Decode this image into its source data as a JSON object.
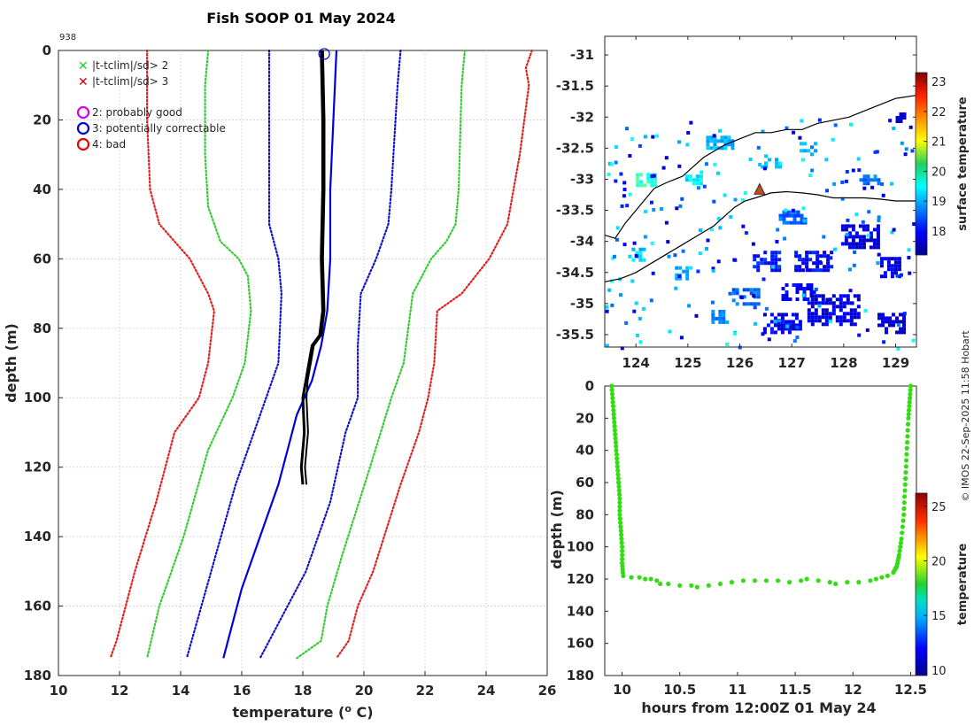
{
  "colors": {
    "clim2": "#33cc33",
    "clim3": "#e02020",
    "probe": "#0000dd",
    "track": "#33dd11",
    "profile": "#000000"
  },
  "credit": "© IMOS 22-Sep-2025 11:58 Hobart",
  "chart_data": [
    {
      "id": "profile",
      "type": "line",
      "title": "Fish SOOP 01 May 2024",
      "station": "938",
      "xlabel": "temperature (",
      "xlabel_sup": "o",
      "xlabel_end": " C)",
      "ylabel": "depth (m)",
      "xlim": [
        10,
        26
      ],
      "ylim": [
        180,
        0
      ],
      "xticks": [
        "10",
        "12",
        "14",
        "16",
        "18",
        "20",
        "22",
        "24",
        "26"
      ],
      "yticks": [
        "0",
        "20",
        "40",
        "60",
        "80",
        "100",
        "120",
        "140",
        "160",
        "180"
      ],
      "legend": [
        {
          "marker": "x",
          "color": "#22cc22",
          "label": "|t-tclim|/sd> 2"
        },
        {
          "marker": "x",
          "color": "#dd0000",
          "label": "|t-tclim|/sd> 3"
        },
        {
          "marker": "o",
          "color": "#dd00dd",
          "label": "2: probably good"
        },
        {
          "marker": "o",
          "color": "#0000dd",
          "label": "3: potentially correctable"
        },
        {
          "marker": "o",
          "color": "#ee0000",
          "label": "4: bad"
        }
      ],
      "series": [
        {
          "name": "clim minus 3sd",
          "style": "dotted",
          "color": "#e02020",
          "points": [
            [
              12.9,
              0
            ],
            [
              12.9,
              20
            ],
            [
              13,
              40
            ],
            [
              13.3,
              50
            ],
            [
              14.3,
              60
            ],
            [
              14.9,
              70
            ],
            [
              15.1,
              75
            ],
            [
              14.9,
              90
            ],
            [
              14.6,
              100
            ],
            [
              13.8,
              110
            ],
            [
              13.2,
              130
            ],
            [
              12.5,
              150
            ],
            [
              11.9,
              170
            ],
            [
              11.7,
              175
            ]
          ]
        },
        {
          "name": "clim minus 2sd",
          "style": "dotted",
          "color": "#33cc33",
          "points": [
            [
              14.9,
              0
            ],
            [
              14.8,
              10
            ],
            [
              14.8,
              30
            ],
            [
              14.9,
              45
            ],
            [
              15.3,
              55
            ],
            [
              15.9,
              60
            ],
            [
              16.2,
              65
            ],
            [
              16.3,
              75
            ],
            [
              16.1,
              90
            ],
            [
              15.7,
              100
            ],
            [
              14.9,
              115
            ],
            [
              14.1,
              140
            ],
            [
              13.3,
              160
            ],
            [
              12.9,
              175
            ]
          ]
        },
        {
          "name": "clim minus 1sd",
          "style": "dotted",
          "color": "#1010cc",
          "points": [
            [
              16.9,
              0
            ],
            [
              16.9,
              20
            ],
            [
              16.9,
              50
            ],
            [
              17.2,
              60
            ],
            [
              17.3,
              70
            ],
            [
              17.2,
              90
            ],
            [
              16.6,
              105
            ],
            [
              15.8,
              125
            ],
            [
              15,
              150
            ],
            [
              14.2,
              175
            ]
          ]
        },
        {
          "name": "clim plus 1sd",
          "style": "dotted",
          "color": "#1010cc",
          "points": [
            [
              21.2,
              0
            ],
            [
              21.1,
              10
            ],
            [
              20.9,
              40
            ],
            [
              20.8,
              50
            ],
            [
              20.4,
              60
            ],
            [
              19.9,
              70
            ],
            [
              19.8,
              85
            ],
            [
              19.8,
              100
            ],
            [
              19.4,
              110
            ],
            [
              18.9,
              130
            ],
            [
              18.1,
              150
            ],
            [
              16.6,
              175
            ]
          ]
        },
        {
          "name": "clim plus 2sd",
          "style": "dotted",
          "color": "#33cc33",
          "points": [
            [
              23.3,
              0
            ],
            [
              23.2,
              10
            ],
            [
              23.1,
              40
            ],
            [
              23,
              50
            ],
            [
              22.7,
              55
            ],
            [
              22.2,
              60
            ],
            [
              21.6,
              70
            ],
            [
              21.3,
              90
            ],
            [
              20.9,
              100
            ],
            [
              20.2,
              120
            ],
            [
              19.3,
              145
            ],
            [
              18.8,
              160
            ],
            [
              18.6,
              170
            ],
            [
              17.8,
              175
            ]
          ]
        },
        {
          "name": "clim plus 3sd",
          "style": "dotted",
          "color": "#e02020",
          "points": [
            [
              25.5,
              0
            ],
            [
              25.3,
              5
            ],
            [
              25.4,
              10
            ],
            [
              25.1,
              30
            ],
            [
              24.9,
              40
            ],
            [
              24.7,
              50
            ],
            [
              24.1,
              60
            ],
            [
              23.2,
              70
            ],
            [
              22.4,
              75
            ],
            [
              22.3,
              90
            ],
            [
              22.1,
              100
            ],
            [
              21.8,
              110
            ],
            [
              21.2,
              125
            ],
            [
              20.3,
              150
            ],
            [
              19.8,
              160
            ],
            [
              19.5,
              170
            ],
            [
              19.1,
              175
            ]
          ]
        },
        {
          "name": "probe temperature",
          "style": "solid",
          "color": "#0000dd",
          "points": [
            [
              19.1,
              0
            ],
            [
              19.0,
              20
            ],
            [
              18.9,
              40
            ],
            [
              18.9,
              60
            ],
            [
              18.8,
              75
            ],
            [
              18.6,
              85
            ],
            [
              18.3,
              95
            ],
            [
              17.8,
              105
            ],
            [
              17.5,
              115
            ],
            [
              17.2,
              125
            ],
            [
              16.8,
              135
            ],
            [
              16.4,
              145
            ],
            [
              16,
              155
            ],
            [
              15.7,
              165
            ],
            [
              15.4,
              175
            ]
          ]
        },
        {
          "name": "observed temperature",
          "style": "solid",
          "color": "#000000",
          "points": [
            [
              18.6,
              0
            ],
            [
              18.65,
              20
            ],
            [
              18.65,
              40
            ],
            [
              18.6,
              60
            ],
            [
              18.65,
              75
            ],
            [
              18.55,
              82
            ],
            [
              18.3,
              85
            ],
            [
              18.2,
              90
            ],
            [
              18.1,
              95
            ],
            [
              18.0,
              100
            ],
            [
              18.05,
              110
            ],
            [
              18.0,
              115
            ],
            [
              17.95,
              120
            ],
            [
              18.0,
              125
            ]
          ]
        }
      ],
      "flag_marker": {
        "x": 18.7,
        "y": 1,
        "color": "#0000dd"
      }
    },
    {
      "id": "map",
      "type": "heatmap",
      "xlim": [
        123.4,
        129.4
      ],
      "ylim": [
        -35.7,
        -30.7
      ],
      "xticks": [
        "124",
        "125",
        "126",
        "127",
        "128",
        "129"
      ],
      "yticks": [
        "-31",
        "-31.5",
        "-32",
        "-32.5",
        "-33",
        "-33.5",
        "-34",
        "-34.5",
        "-35",
        "-35.5"
      ],
      "colorbar_label": "surface temperature",
      "colorbar_ticks": [
        "23",
        "22",
        "21",
        "20",
        "19",
        "18"
      ],
      "colorbar_range": [
        17.2,
        23.3
      ],
      "station_marker": {
        "lon": 126.38,
        "lat": -33.17
      },
      "coast_north": [
        [
          123.4,
          -33.9
        ],
        [
          123.6,
          -33.95
        ],
        [
          123.8,
          -33.7
        ],
        [
          124.0,
          -33.5
        ],
        [
          124.2,
          -33.3
        ],
        [
          124.35,
          -33.15
        ],
        [
          124.6,
          -33.05
        ],
        [
          124.9,
          -32.95
        ],
        [
          125.1,
          -32.8
        ],
        [
          125.3,
          -32.65
        ],
        [
          125.5,
          -32.55
        ],
        [
          125.7,
          -32.45
        ],
        [
          126.0,
          -32.35
        ],
        [
          126.3,
          -32.25
        ],
        [
          126.6,
          -32.25
        ],
        [
          126.9,
          -32.2
        ],
        [
          127.2,
          -32.2
        ],
        [
          127.5,
          -32.1
        ],
        [
          127.8,
          -32.05
        ],
        [
          128.1,
          -32.0
        ],
        [
          128.4,
          -31.9
        ],
        [
          128.7,
          -31.8
        ],
        [
          129.0,
          -31.7
        ],
        [
          129.4,
          -31.65
        ]
      ],
      "coast_south": [
        [
          123.4,
          -34.65
        ],
        [
          123.7,
          -34.6
        ],
        [
          124.0,
          -34.5
        ],
        [
          124.3,
          -34.35
        ],
        [
          124.6,
          -34.2
        ],
        [
          124.9,
          -34.05
        ],
        [
          125.2,
          -33.9
        ],
        [
          125.5,
          -33.75
        ],
        [
          125.7,
          -33.6
        ],
        [
          125.9,
          -33.45
        ],
        [
          126.1,
          -33.35
        ],
        [
          126.3,
          -33.3
        ],
        [
          126.6,
          -33.22
        ],
        [
          126.9,
          -33.2
        ],
        [
          127.2,
          -33.22
        ],
        [
          127.5,
          -33.25
        ],
        [
          127.8,
          -33.3
        ],
        [
          128.1,
          -33.3
        ],
        [
          128.4,
          -33.3
        ],
        [
          128.7,
          -33.32
        ],
        [
          129.0,
          -33.35
        ],
        [
          129.4,
          -33.35
        ]
      ],
      "sst_patches": [
        {
          "lon": 125.6,
          "lat": -32.4,
          "w": 0.5,
          "h": 0.2,
          "t": 18.8
        },
        {
          "lon": 126.6,
          "lat": -32.7,
          "w": 0.4,
          "h": 0.2,
          "t": 19.0
        },
        {
          "lon": 124.2,
          "lat": -33.0,
          "w": 0.4,
          "h": 0.2,
          "t": 19.6
        },
        {
          "lon": 125.1,
          "lat": -33.0,
          "w": 0.3,
          "h": 0.15,
          "t": 19.2
        },
        {
          "lon": 127.3,
          "lat": -32.5,
          "w": 0.3,
          "h": 0.2,
          "t": 18.7
        },
        {
          "lon": 127.0,
          "lat": -33.6,
          "w": 0.5,
          "h": 0.2,
          "t": 18.3
        },
        {
          "lon": 128.3,
          "lat": -33.9,
          "w": 0.7,
          "h": 0.35,
          "t": 17.5
        },
        {
          "lon": 127.4,
          "lat": -34.3,
          "w": 0.7,
          "h": 0.3,
          "t": 17.7
        },
        {
          "lon": 126.5,
          "lat": -34.3,
          "w": 0.5,
          "h": 0.3,
          "t": 17.9
        },
        {
          "lon": 126.1,
          "lat": -34.9,
          "w": 0.5,
          "h": 0.3,
          "t": 18.4
        },
        {
          "lon": 127.1,
          "lat": -34.8,
          "w": 0.6,
          "h": 0.25,
          "t": 17.6
        },
        {
          "lon": 127.8,
          "lat": -35.1,
          "w": 1.0,
          "h": 0.5,
          "t": 17.4
        },
        {
          "lon": 126.8,
          "lat": -35.3,
          "w": 0.7,
          "h": 0.3,
          "t": 17.6
        },
        {
          "lon": 128.9,
          "lat": -35.3,
          "w": 0.5,
          "h": 0.3,
          "t": 17.4
        },
        {
          "lon": 124.9,
          "lat": -34.5,
          "w": 0.3,
          "h": 0.2,
          "t": 18.9
        },
        {
          "lon": 124.0,
          "lat": -34.2,
          "w": 0.3,
          "h": 0.2,
          "t": 19.0
        },
        {
          "lon": 128.9,
          "lat": -34.4,
          "w": 0.4,
          "h": 0.3,
          "t": 17.5
        },
        {
          "lon": 125.6,
          "lat": -35.2,
          "w": 0.3,
          "h": 0.2,
          "t": 18.5
        },
        {
          "lon": 129.1,
          "lat": -32.0,
          "w": 0.2,
          "h": 0.15,
          "t": 17.5
        },
        {
          "lon": 128.5,
          "lat": -33.0,
          "w": 0.4,
          "h": 0.15,
          "t": 18.4
        }
      ]
    },
    {
      "id": "track",
      "type": "scatter",
      "xlabel": "hours from 12:00Z 01 May 24",
      "ylabel": "depth (m)",
      "xlim": [
        9.85,
        12.55
      ],
      "ylim": [
        180,
        0
      ],
      "xticks": [
        "10",
        "10.5",
        "11",
        "11.5",
        "12",
        "12.5"
      ],
      "yticks": [
        "0",
        "20",
        "40",
        "60",
        "80",
        "100",
        "120",
        "140",
        "160",
        "180"
      ],
      "colorbar_label": "temperature",
      "colorbar_ticks": [
        "25",
        "20",
        "15",
        "10"
      ],
      "colorbar_range": [
        9.5,
        26.2
      ],
      "points": [
        [
          9.91,
          0
        ],
        [
          9.92,
          10
        ],
        [
          9.93,
          20
        ],
        [
          9.94,
          30
        ],
        [
          9.95,
          40
        ],
        [
          9.96,
          50
        ],
        [
          9.97,
          60
        ],
        [
          9.98,
          70
        ],
        [
          9.98,
          80
        ],
        [
          9.99,
          90
        ],
        [
          10.0,
          100
        ],
        [
          10.0,
          110
        ],
        [
          10.01,
          118
        ],
        [
          10.08,
          119
        ],
        [
          10.15,
          119
        ],
        [
          10.2,
          120
        ],
        [
          10.25,
          120
        ],
        [
          10.3,
          121
        ],
        [
          10.33,
          123
        ],
        [
          10.4,
          123
        ],
        [
          10.5,
          124
        ],
        [
          10.6,
          124
        ],
        [
          10.65,
          125
        ],
        [
          10.75,
          124
        ],
        [
          10.85,
          123
        ],
        [
          10.95,
          122
        ],
        [
          11.05,
          121
        ],
        [
          11.15,
          121
        ],
        [
          11.25,
          121
        ],
        [
          11.35,
          121
        ],
        [
          11.45,
          122
        ],
        [
          11.55,
          121
        ],
        [
          11.6,
          120
        ],
        [
          11.7,
          121
        ],
        [
          11.8,
          122
        ],
        [
          11.85,
          123
        ],
        [
          11.95,
          122
        ],
        [
          12.05,
          122
        ],
        [
          12.15,
          121
        ],
        [
          12.2,
          120
        ],
        [
          12.25,
          119
        ],
        [
          12.3,
          118
        ],
        [
          12.35,
          116
        ],
        [
          12.38,
          112
        ],
        [
          12.4,
          105
        ],
        [
          12.42,
          95
        ],
        [
          12.44,
          80
        ],
        [
          12.45,
          65
        ],
        [
          12.46,
          50
        ],
        [
          12.47,
          35
        ],
        [
          12.48,
          20
        ],
        [
          12.49,
          10
        ],
        [
          12.5,
          0
        ]
      ]
    }
  ]
}
